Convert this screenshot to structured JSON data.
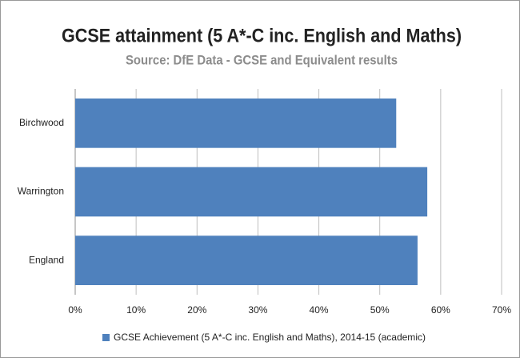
{
  "chart_data": {
    "type": "bar",
    "orientation": "horizontal",
    "title": "GCSE attainment (5 A*-C inc. English and Maths)",
    "subtitle": "Source: DfE Data - GCSE and Equivalent results",
    "categories": [
      "Birchwood",
      "Warrington",
      "England"
    ],
    "series": [
      {
        "name": "GCSE Achievement (5 A*-C inc. English and Maths), 2014-15 (academic)",
        "color": "#4f81bd",
        "values": [
          52.7,
          57.8,
          56.2
        ]
      }
    ],
    "xlim": [
      0,
      70
    ],
    "xticks": [
      {
        "value": 0,
        "label": "0%"
      },
      {
        "value": 10,
        "label": "10%"
      },
      {
        "value": 20,
        "label": "20%"
      },
      {
        "value": 30,
        "label": "30%"
      },
      {
        "value": 40,
        "label": "40%"
      },
      {
        "value": 50,
        "label": "50%"
      },
      {
        "value": 60,
        "label": "60%"
      },
      {
        "value": 70,
        "label": "70%"
      }
    ],
    "grid": true,
    "legend": "bottom"
  }
}
